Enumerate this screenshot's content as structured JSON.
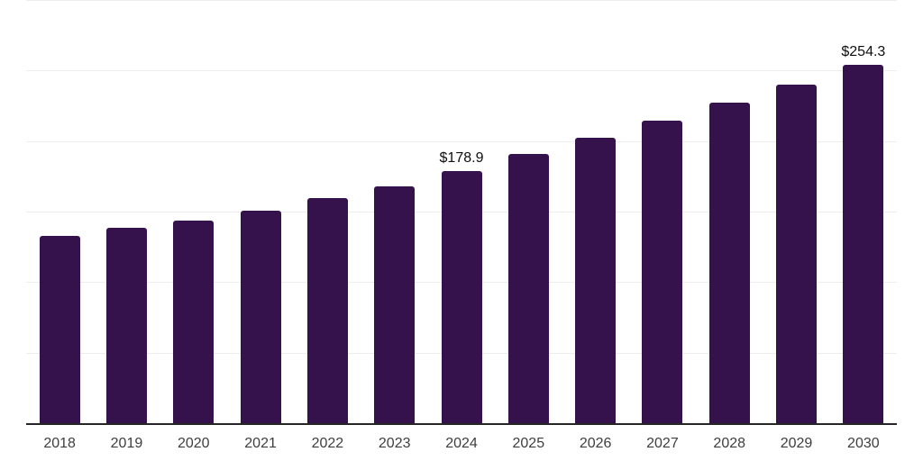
{
  "chart_data": {
    "type": "bar",
    "title": "",
    "xlabel": "",
    "ylabel": "",
    "categories": [
      "2018",
      "2019",
      "2020",
      "2021",
      "2022",
      "2023",
      "2024",
      "2025",
      "2026",
      "2027",
      "2028",
      "2029",
      "2030"
    ],
    "values": [
      132.6,
      138.3,
      143.4,
      150.4,
      159.3,
      168.1,
      178.9,
      190.6,
      202.3,
      214.4,
      227.0,
      240.3,
      254.3
    ],
    "value_labels": [
      {
        "category": "2024",
        "text": "$178.9"
      },
      {
        "category": "2030",
        "text": "$254.3"
      }
    ],
    "ylim": [
      0,
      300
    ],
    "gridline_step": 50,
    "grid": "horizontal",
    "y_tick_labels_shown": false,
    "legend": "none",
    "colors": {
      "bar": "#35124b",
      "axis_line": "#262626",
      "gridline": "#ededed",
      "value_label": "#0e0e0e",
      "tick_label": "#3e3e3e",
      "background": "#ffffff"
    }
  }
}
